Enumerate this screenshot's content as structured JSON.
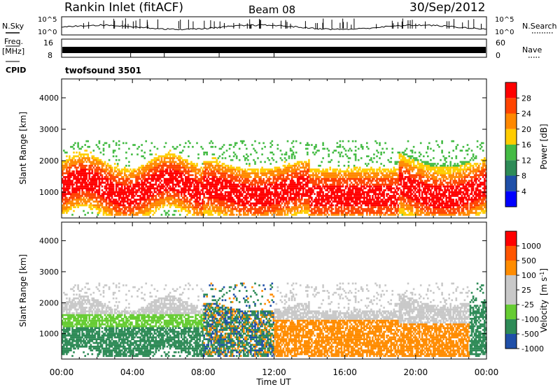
{
  "header": {
    "station": "Rankin Inlet (fitACF)",
    "beam": "Beam 08",
    "date": "30/Sep/2012"
  },
  "noise_panel": {
    "left_label": "N.Sky",
    "right_label": "N.Search",
    "left_ticks": [
      "10^5",
      "10^0"
    ],
    "right_ticks": [
      "10^5",
      "10^0"
    ]
  },
  "freq_panel": {
    "left_label_1": "Freq.",
    "left_label_2": "[MHz]",
    "right_label": "Nave",
    "left_ticks": [
      "16",
      "8"
    ],
    "right_ticks": [
      "60",
      "0"
    ]
  },
  "cpid": {
    "label": "CPID",
    "value": "twofsound 3501"
  },
  "colors": {
    "power_scale": [
      "#0000ff",
      "#1f4fa8",
      "#2e8b57",
      "#44bb44",
      "#ffcc00",
      "#ff8800",
      "#ff4400",
      "#ff0000"
    ],
    "velocity_scale": [
      "#ff0000",
      "#ff5500",
      "#ff8c00",
      "#c8c8c8",
      "#c8c8c8",
      "#66cc33",
      "#2e8b57",
      "#1f4fa8"
    ]
  },
  "chart_data": [
    {
      "type": "heatmap",
      "panel": "power",
      "x_type": "time",
      "xlabel": "Time UT",
      "ylabel": "Slant Range [km]",
      "x_ticks": [
        "00:00",
        "04:00",
        "08:00",
        "12:00",
        "16:00",
        "20:00",
        "00:00"
      ],
      "xlim_hours": [
        0,
        24
      ],
      "ylim": [
        180,
        4600
      ],
      "y_ticks": [
        1000,
        2000,
        3000,
        4000
      ],
      "colorbar_label": "Power [dB]",
      "colorbar_ticks": [
        4,
        8,
        12,
        16,
        20,
        24,
        28
      ],
      "colorbar_range": [
        0,
        30
      ],
      "grid": false
    },
    {
      "type": "heatmap",
      "panel": "velocity",
      "x_type": "time",
      "xlabel": "Time UT",
      "ylabel": "Slant Range [km]",
      "x_ticks": [
        "00:00",
        "04:00",
        "08:00",
        "12:00",
        "16:00",
        "20:00",
        "00:00"
      ],
      "xlim_hours": [
        0,
        24
      ],
      "ylim": [
        180,
        4600
      ],
      "y_ticks": [
        1000,
        2000,
        3000,
        4000
      ],
      "colorbar_label": "Velocity",
      "colorbar_unit": "[m s",
      "colorbar_unit_exp": "-1",
      "colorbar_unit_end": "]",
      "colorbar_ticks": [
        "1000",
        "500",
        "100",
        "25",
        "-25",
        "-100",
        "-500",
        "-1000"
      ],
      "grid": false
    }
  ]
}
